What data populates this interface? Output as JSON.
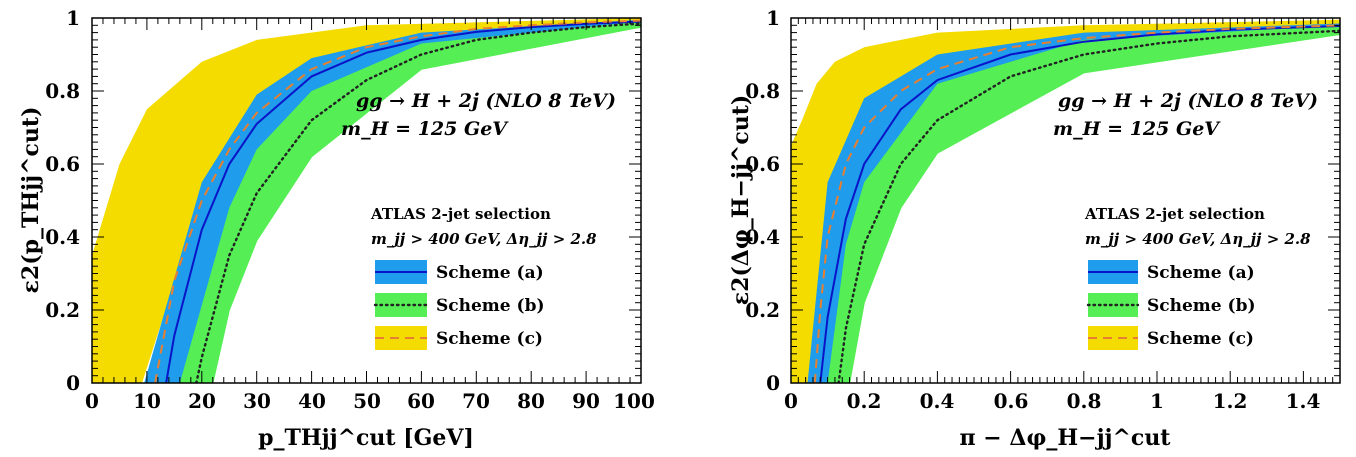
{
  "chart_data": [
    {
      "type": "area",
      "xlim": [
        0,
        100
      ],
      "ylim": [
        0,
        1
      ],
      "x_ticks": [
        "0",
        "10",
        "20",
        "30",
        "40",
        "50",
        "60",
        "70",
        "80",
        "90",
        "100"
      ],
      "y_ticks": [
        "0",
        "0.2",
        "0.4",
        "0.6",
        "0.8",
        "1"
      ],
      "xlabel": "p_THjj^cut [GeV]",
      "ylabel": "ε2(p_THjj^cut)",
      "annotations": [
        "gg → H + 2j (NLO 8 TeV)",
        "m_H = 125 GeV",
        "ATLAS 2-jet selection",
        "m_jj > 400 GeV, Δη_jj > 2.8"
      ],
      "legend_position": "lower-right",
      "legend": [
        {
          "label": "Scheme (a)",
          "band": "#1f9ceb",
          "line": "#0a14c8",
          "style": "solid"
        },
        {
          "label": "Scheme (b)",
          "band": "#55ee55",
          "line": "#222222",
          "style": "dotted"
        },
        {
          "label": "Scheme (c)",
          "band": "#f5dc00",
          "line": "#e87f30",
          "style": "dashed"
        }
      ],
      "series": [
        {
          "name": "Scheme (a)",
          "band": "#1f9ceb",
          "line": "#0a14c8",
          "dash": "",
          "x": [
            13.5,
            15,
            20,
            25,
            30,
            40,
            50,
            60,
            70,
            80,
            90,
            100
          ],
          "y": [
            0,
            0.13,
            0.42,
            0.6,
            0.71,
            0.84,
            0.905,
            0.94,
            0.962,
            0.975,
            0.984,
            0.99
          ],
          "lo": [
            {
              "x": 9.5,
              "y": 0
            },
            {
              "x": 20,
              "y": 0.55
            },
            {
              "x": 30,
              "y": 0.79
            },
            {
              "x": 40,
              "y": 0.89
            },
            {
              "x": 60,
              "y": 0.96
            },
            {
              "x": 100,
              "y": 0.995
            }
          ],
          "hi": [
            {
              "x": 18,
              "y": 0
            },
            {
              "x": 25,
              "y": 0.43
            },
            {
              "x": 30,
              "y": 0.58
            },
            {
              "x": 40,
              "y": 0.75
            },
            {
              "x": 60,
              "y": 0.9
            },
            {
              "x": 100,
              "y": 0.98
            }
          ]
        },
        {
          "name": "Scheme (b)",
          "band": "#55ee55",
          "line": "#222222",
          "dash": "1.5,4",
          "x": [
            19,
            20,
            25,
            30,
            40,
            50,
            60,
            70,
            80,
            90,
            100
          ],
          "y": [
            0,
            0.07,
            0.35,
            0.52,
            0.72,
            0.83,
            0.9,
            0.94,
            0.96,
            0.975,
            0.985
          ],
          "lo": [
            {
              "x": 16,
              "y": 0
            },
            {
              "x": 25,
              "y": 0.48
            },
            {
              "x": 30,
              "y": 0.64
            },
            {
              "x": 40,
              "y": 0.8
            },
            {
              "x": 60,
              "y": 0.93
            },
            {
              "x": 100,
              "y": 0.99
            }
          ],
          "hi": [
            {
              "x": 22,
              "y": 0
            },
            {
              "x": 25,
              "y": 0.2
            },
            {
              "x": 30,
              "y": 0.39
            },
            {
              "x": 40,
              "y": 0.62
            },
            {
              "x": 60,
              "y": 0.86
            },
            {
              "x": 100,
              "y": 0.975
            }
          ]
        },
        {
          "name": "Scheme (c)",
          "band": "#f5dc00",
          "line": "#e87f30",
          "dash": "9,6",
          "x": [
            11.5,
            15,
            20,
            25,
            30,
            40,
            50,
            60,
            70,
            80,
            90,
            100
          ],
          "y": [
            0,
            0.28,
            0.5,
            0.64,
            0.74,
            0.86,
            0.92,
            0.95,
            0.97,
            0.98,
            0.988,
            0.993
          ],
          "lo": [
            {
              "x": 0,
              "y": 0.35
            },
            {
              "x": 5,
              "y": 0.6
            },
            {
              "x": 10,
              "y": 0.75
            },
            {
              "x": 20,
              "y": 0.88
            },
            {
              "x": 30,
              "y": 0.94
            },
            {
              "x": 50,
              "y": 0.98
            },
            {
              "x": 100,
              "y": 1.0
            }
          ],
          "hi": [
            {
              "x": 9,
              "y": 0
            },
            {
              "x": 15,
              "y": 0.28
            },
            {
              "x": 20,
              "y": 0.45
            },
            {
              "x": 30,
              "y": 0.66
            },
            {
              "x": 40,
              "y": 0.79
            },
            {
              "x": 60,
              "y": 0.91
            },
            {
              "x": 100,
              "y": 0.985
            }
          ]
        }
      ]
    },
    {
      "type": "area",
      "xlim": [
        0,
        1.5
      ],
      "ylim": [
        0,
        1
      ],
      "x_ticks": [
        "0",
        "0.2",
        "0.4",
        "0.6",
        "0.8",
        "1",
        "1.2",
        "1.4"
      ],
      "y_ticks": [
        "0",
        "0.2",
        "0.4",
        "0.6",
        "0.8",
        "1"
      ],
      "xlabel": "π − Δφ_H−jj^cut",
      "ylabel": "ε2(Δφ_H−jj^cut)",
      "annotations": [
        "gg → H + 2j (NLO 8 TeV)",
        "m_H = 125 GeV",
        "ATLAS 2-jet selection",
        "m_jj > 400 GeV, Δη_jj > 2.8"
      ],
      "legend_position": "lower-right",
      "legend": [
        {
          "label": "Scheme (a)",
          "band": "#1f9ceb",
          "line": "#0a14c8",
          "style": "solid"
        },
        {
          "label": "Scheme (b)",
          "band": "#55ee55",
          "line": "#222222",
          "style": "dotted"
        },
        {
          "label": "Scheme (c)",
          "band": "#f5dc00",
          "line": "#e87f30",
          "style": "dashed"
        }
      ],
      "series": [
        {
          "name": "Scheme (a)",
          "band": "#1f9ceb",
          "line": "#0a14c8",
          "dash": "",
          "x": [
            0.08,
            0.1,
            0.15,
            0.2,
            0.3,
            0.4,
            0.6,
            0.8,
            1.0,
            1.2,
            1.5
          ],
          "y": [
            0,
            0.18,
            0.45,
            0.6,
            0.75,
            0.83,
            0.9,
            0.935,
            0.955,
            0.968,
            0.978
          ],
          "lo": [
            {
              "x": 0.045,
              "y": 0
            },
            {
              "x": 0.1,
              "y": 0.55
            },
            {
              "x": 0.2,
              "y": 0.78
            },
            {
              "x": 0.4,
              "y": 0.9
            },
            {
              "x": 0.8,
              "y": 0.96
            },
            {
              "x": 1.5,
              "y": 0.985
            }
          ],
          "hi": [
            {
              "x": 0.12,
              "y": 0
            },
            {
              "x": 0.2,
              "y": 0.4
            },
            {
              "x": 0.3,
              "y": 0.6
            },
            {
              "x": 0.4,
              "y": 0.72
            },
            {
              "x": 0.8,
              "y": 0.88
            },
            {
              "x": 1.5,
              "y": 0.965
            }
          ]
        },
        {
          "name": "Scheme (b)",
          "band": "#55ee55",
          "line": "#222222",
          "dash": "1.5,4",
          "x": [
            0.13,
            0.15,
            0.2,
            0.3,
            0.4,
            0.6,
            0.8,
            1.0,
            1.2,
            1.5
          ],
          "y": [
            0,
            0.15,
            0.38,
            0.6,
            0.72,
            0.84,
            0.9,
            0.93,
            0.95,
            0.965
          ],
          "lo": [
            {
              "x": 0.1,
              "y": 0
            },
            {
              "x": 0.15,
              "y": 0.38
            },
            {
              "x": 0.2,
              "y": 0.55
            },
            {
              "x": 0.4,
              "y": 0.82
            },
            {
              "x": 0.8,
              "y": 0.94
            },
            {
              "x": 1.5,
              "y": 0.98
            }
          ],
          "hi": [
            {
              "x": 0.16,
              "y": 0
            },
            {
              "x": 0.2,
              "y": 0.22
            },
            {
              "x": 0.3,
              "y": 0.48
            },
            {
              "x": 0.4,
              "y": 0.63
            },
            {
              "x": 0.8,
              "y": 0.85
            },
            {
              "x": 1.5,
              "y": 0.955
            }
          ]
        },
        {
          "name": "Scheme (c)",
          "band": "#f5dc00",
          "line": "#e87f30",
          "dash": "9,6",
          "x": [
            0.065,
            0.08,
            0.1,
            0.15,
            0.2,
            0.3,
            0.4,
            0.6,
            0.8,
            1.0,
            1.2,
            1.5
          ],
          "y": [
            0,
            0.2,
            0.4,
            0.6,
            0.7,
            0.8,
            0.86,
            0.92,
            0.945,
            0.96,
            0.97,
            0.98
          ],
          "lo": [
            {
              "x": 0,
              "y": 0.65
            },
            {
              "x": 0.03,
              "y": 0.72
            },
            {
              "x": 0.07,
              "y": 0.82
            },
            {
              "x": 0.12,
              "y": 0.88
            },
            {
              "x": 0.2,
              "y": 0.92
            },
            {
              "x": 0.4,
              "y": 0.96
            },
            {
              "x": 0.8,
              "y": 0.98
            },
            {
              "x": 1.5,
              "y": 0.995
            }
          ],
          "hi": [
            {
              "x": 0.05,
              "y": 0
            },
            {
              "x": 0.1,
              "y": 0.3
            },
            {
              "x": 0.15,
              "y": 0.45
            },
            {
              "x": 0.2,
              "y": 0.57
            },
            {
              "x": 0.3,
              "y": 0.68
            },
            {
              "x": 0.4,
              "y": 0.75
            },
            {
              "x": 0.8,
              "y": 0.88
            },
            {
              "x": 1.5,
              "y": 0.965
            }
          ]
        }
      ]
    }
  ]
}
